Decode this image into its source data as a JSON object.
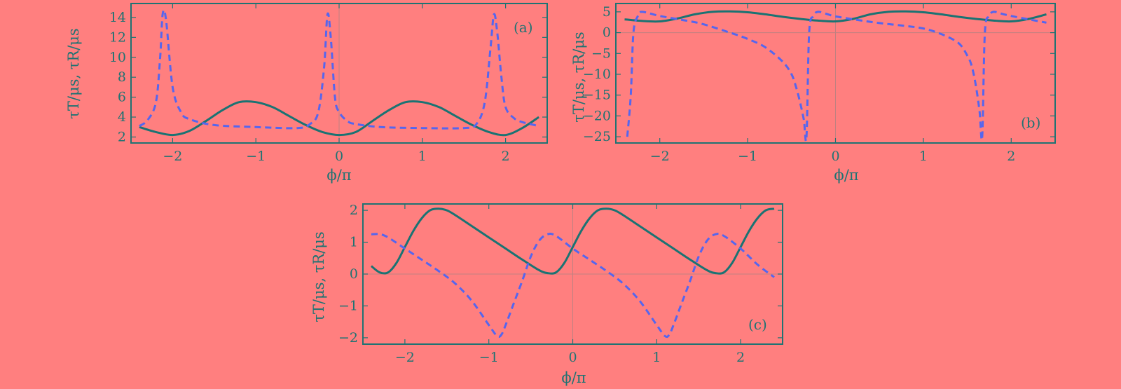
{
  "colors": {
    "background": "#ff7f7f",
    "axis": "#1f7373",
    "solid_series": "#1a7373",
    "dashed_series": "#5566ee",
    "zero_line": "#c08080"
  },
  "chart_data": [
    {
      "type": "line",
      "panel_label": "(a)",
      "xlabel": "ϕ/π",
      "ylabel": "τT/μs, τR/μs",
      "xlim": [
        -2.5,
        2.5
      ],
      "ylim": [
        1.4,
        15.4
      ],
      "xticks": [
        -2,
        -1,
        0,
        1,
        2
      ],
      "xtick_labels": [
        "−2",
        "−1",
        "0",
        "1",
        "2"
      ],
      "yticks": [
        2,
        4,
        6,
        8,
        10,
        12,
        14
      ],
      "ytick_labels": [
        "2",
        "4",
        "6",
        "8",
        "10",
        "12",
        "14"
      ],
      "series": [
        {
          "name": "τT",
          "style": "solid",
          "x": [
            -2.4,
            -2.2,
            -2.0,
            -1.8,
            -1.6,
            -1.4,
            -1.2,
            -1.0,
            -0.8,
            -0.6,
            -0.4,
            -0.2,
            0.0,
            0.2,
            0.4,
            0.6,
            0.8,
            1.0,
            1.2,
            1.4,
            1.6,
            1.8,
            2.0,
            2.2,
            2.4
          ],
          "values": [
            3.0,
            2.5,
            2.2,
            2.6,
            3.6,
            4.7,
            5.5,
            5.5,
            5.0,
            4.1,
            3.2,
            2.5,
            2.2,
            2.5,
            3.6,
            4.7,
            5.5,
            5.5,
            5.0,
            4.1,
            3.2,
            2.5,
            2.2,
            2.9,
            4.0
          ]
        },
        {
          "name": "τR",
          "style": "dashed",
          "x": [
            -2.4,
            -2.3,
            -2.2,
            -2.15,
            -2.12,
            -2.08,
            -2.0,
            -1.9,
            -1.8,
            -1.5,
            -1.0,
            -0.5,
            -0.35,
            -0.25,
            -0.18,
            -0.14,
            -0.1,
            -0.05,
            0.0,
            0.1,
            0.2,
            0.5,
            1.0,
            1.5,
            1.65,
            1.75,
            1.82,
            1.86,
            1.9,
            1.95,
            2.0,
            2.1,
            2.2,
            2.4
          ],
          "values": [
            3.1,
            3.7,
            5.5,
            10.0,
            14.3,
            13.8,
            7.0,
            4.5,
            3.8,
            3.2,
            3.0,
            2.9,
            3.3,
            4.5,
            9.0,
            14.3,
            12.0,
            6.0,
            4.5,
            3.6,
            3.3,
            3.0,
            2.9,
            2.9,
            3.3,
            5.5,
            11.0,
            14.3,
            12.5,
            8.0,
            5.0,
            3.9,
            3.5,
            3.1
          ]
        }
      ]
    },
    {
      "type": "line",
      "panel_label": "(b)",
      "xlabel": "ϕ/π",
      "ylabel": "τT/μs, τR/μs",
      "xlim": [
        -2.5,
        2.5
      ],
      "ylim": [
        -26.5,
        7.0
      ],
      "xticks": [
        -2,
        -1,
        0,
        1,
        2
      ],
      "xtick_labels": [
        "−2",
        "−1",
        "0",
        "1",
        "2"
      ],
      "yticks": [
        -25,
        -20,
        -15,
        -10,
        -5,
        0,
        5
      ],
      "ytick_labels": [
        "−25",
        "−20",
        "−15",
        "−10",
        "−5",
        "0",
        "5"
      ],
      "series": [
        {
          "name": "τT",
          "style": "solid",
          "x": [
            -2.4,
            -2.2,
            -2.0,
            -1.8,
            -1.6,
            -1.4,
            -1.2,
            -1.0,
            -0.8,
            -0.6,
            -0.4,
            -0.2,
            0.0,
            0.2,
            0.4,
            0.6,
            0.8,
            1.0,
            1.2,
            1.4,
            1.6,
            1.8,
            2.0,
            2.2,
            2.4
          ],
          "values": [
            3.2,
            2.8,
            2.7,
            3.4,
            4.4,
            5.0,
            5.1,
            4.9,
            4.4,
            3.8,
            3.3,
            2.9,
            2.7,
            3.3,
            4.4,
            5.0,
            5.1,
            4.9,
            4.4,
            3.8,
            3.3,
            2.9,
            2.7,
            3.3,
            4.4
          ]
        },
        {
          "name": "τR",
          "style": "dashed",
          "x": [
            -2.37,
            -2.33,
            -2.3,
            -2.25,
            -2.2,
            -2.0,
            -1.7,
            -1.5,
            -1.2,
            -1.0,
            -0.8,
            -0.6,
            -0.5,
            -0.45,
            -0.4,
            -0.36,
            -0.33,
            -0.3,
            -0.25,
            -0.2,
            -0.1,
            0.0,
            0.3,
            0.5,
            0.8,
            1.0,
            1.2,
            1.4,
            1.5,
            1.55,
            1.6,
            1.64,
            1.67,
            1.7,
            1.75,
            1.8,
            1.9,
            2.0,
            2.2,
            2.4
          ],
          "values": [
            -25.0,
            -15.0,
            0.0,
            4.0,
            5.0,
            4.0,
            2.9,
            2.0,
            0.0,
            -1.5,
            -3.5,
            -7.0,
            -10.0,
            -13.0,
            -17.0,
            -21.0,
            -25.0,
            0.0,
            4.0,
            5.0,
            4.5,
            3.9,
            2.9,
            2.3,
            1.6,
            1.0,
            -0.3,
            -2.5,
            -5.5,
            -8.0,
            -13.0,
            -19.0,
            -25.0,
            0.0,
            4.0,
            5.0,
            4.5,
            4.0,
            3.2,
            2.4
          ]
        }
      ]
    },
    {
      "type": "line",
      "panel_label": "(c)",
      "xlabel": "ϕ/π",
      "ylabel": "τT/μs, τR/μs",
      "xlim": [
        -2.5,
        2.5
      ],
      "ylim": [
        -2.2,
        2.2
      ],
      "xticks": [
        -2,
        -1,
        0,
        1,
        2
      ],
      "xtick_labels": [
        "−2",
        "−1",
        "0",
        "1",
        "2"
      ],
      "yticks": [
        -2,
        -1,
        0,
        1,
        2
      ],
      "ytick_labels": [
        "−2",
        "−1",
        "0",
        "1",
        "2"
      ],
      "series": [
        {
          "name": "τT",
          "style": "solid",
          "x": [
            -2.4,
            -2.3,
            -2.2,
            -2.1,
            -2.0,
            -1.9,
            -1.8,
            -1.7,
            -1.6,
            -1.5,
            -1.4,
            -1.2,
            -1.0,
            -0.8,
            -0.6,
            -0.4,
            -0.3,
            -0.2,
            -0.1,
            0.0,
            0.1,
            0.2,
            0.3,
            0.4,
            0.5,
            0.6,
            0.8,
            1.0,
            1.2,
            1.4,
            1.6,
            1.7,
            1.8,
            1.9,
            2.0,
            2.1,
            2.2,
            2.3,
            2.4
          ],
          "values": [
            0.25,
            0.05,
            0.05,
            0.35,
            0.85,
            1.35,
            1.75,
            2.0,
            2.05,
            2.0,
            1.85,
            1.5,
            1.15,
            0.8,
            0.45,
            0.12,
            0.03,
            0.05,
            0.35,
            0.85,
            1.35,
            1.75,
            2.0,
            2.05,
            2.0,
            1.85,
            1.5,
            1.15,
            0.8,
            0.45,
            0.12,
            0.03,
            0.05,
            0.35,
            0.85,
            1.35,
            1.75,
            2.0,
            2.05
          ]
        },
        {
          "name": "τR",
          "style": "dashed",
          "x": [
            -2.4,
            -2.3,
            -2.2,
            -2.0,
            -1.8,
            -1.6,
            -1.4,
            -1.2,
            -1.0,
            -0.9,
            -0.85,
            -0.8,
            -0.7,
            -0.6,
            -0.5,
            -0.4,
            -0.3,
            -0.2,
            0.0,
            0.2,
            0.4,
            0.6,
            0.8,
            1.0,
            1.1,
            1.15,
            1.2,
            1.3,
            1.4,
            1.5,
            1.6,
            1.7,
            1.8,
            2.0,
            2.2,
            2.4
          ],
          "values": [
            1.25,
            1.25,
            1.15,
            0.8,
            0.45,
            0.1,
            -0.3,
            -0.85,
            -1.6,
            -1.95,
            -1.9,
            -1.6,
            -0.9,
            -0.2,
            0.55,
            1.05,
            1.25,
            1.2,
            0.8,
            0.45,
            0.1,
            -0.3,
            -0.85,
            -1.6,
            -1.95,
            -1.9,
            -1.6,
            -0.9,
            -0.2,
            0.55,
            1.05,
            1.25,
            1.2,
            0.8,
            0.3,
            -0.1
          ]
        }
      ]
    }
  ]
}
